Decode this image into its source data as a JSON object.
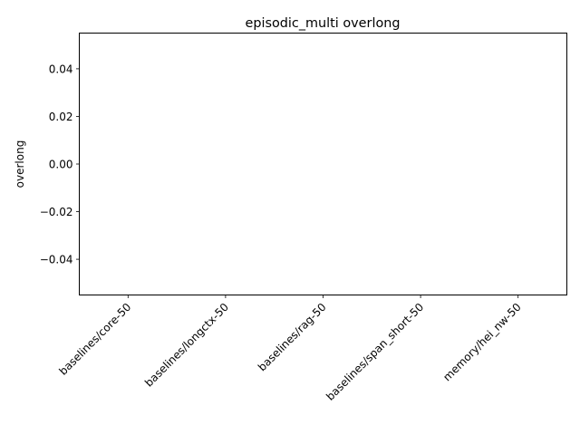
{
  "chart_data": {
    "type": "bar",
    "title": "episodic_multi overlong",
    "xlabel": "",
    "ylabel": "overlong",
    "categories": [
      "baselines/core-50",
      "baselines/longctx-50",
      "baselines/rag-50",
      "baselines/span_short-50",
      "memory/hei_nw-50"
    ],
    "values": [
      0,
      0,
      0,
      0,
      0
    ],
    "ylim": [
      -0.055,
      0.055
    ],
    "yticks": [
      -0.04,
      -0.02,
      0.0,
      0.02,
      0.04
    ],
    "ytick_labels": [
      "−0.04",
      "−0.02",
      "0.00",
      "0.02",
      "0.04"
    ],
    "grid": false,
    "bar_color": "#1f77b4",
    "x_tick_rotation": 45
  }
}
